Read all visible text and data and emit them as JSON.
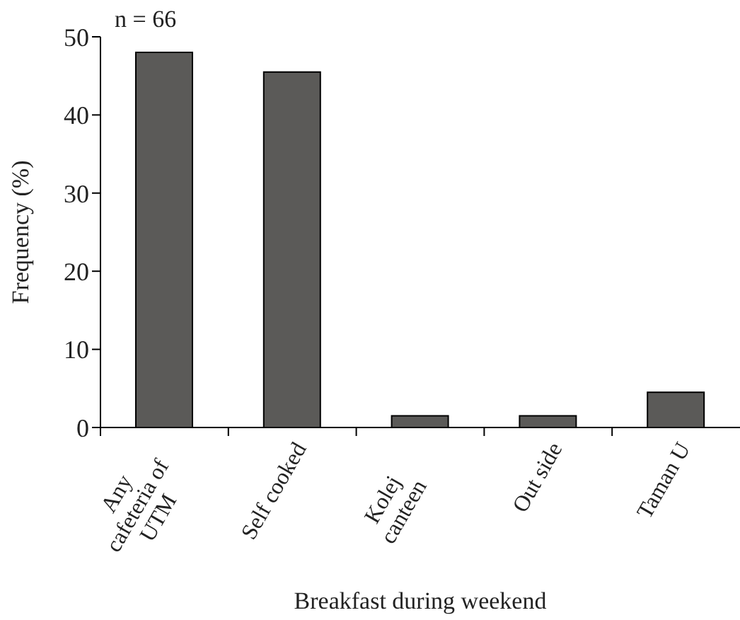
{
  "chart_data": {
    "type": "bar",
    "xlabel": "Breakfast during weekend",
    "ylabel": "Frequency (%)",
    "annotations": [
      "n = 66"
    ],
    "categories": [
      "Any\ncafeteria of\nUTM",
      "Self cooked",
      "Kolej\ncanteen",
      "Out side",
      "Taman U"
    ],
    "values": [
      48,
      45.5,
      1.5,
      1.5,
      4.5
    ],
    "color": "#5b5a58",
    "ylim": [
      0,
      50
    ],
    "yticks": [
      0,
      10,
      20,
      30,
      40,
      50
    ],
    "grid": false,
    "legend": false
  }
}
